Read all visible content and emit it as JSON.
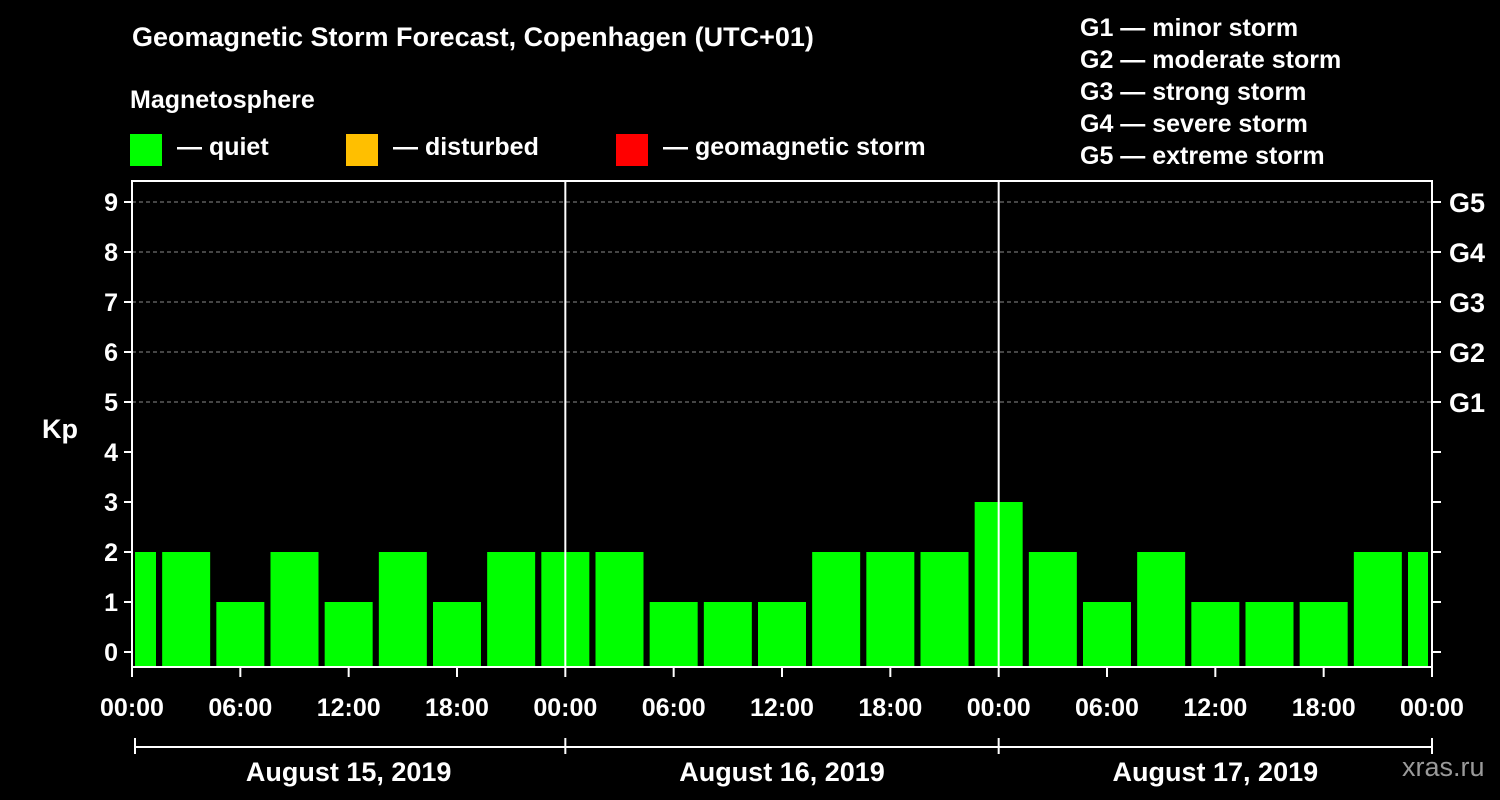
{
  "title": "Geomagnetic Storm Forecast, Copenhagen (UTC+01)",
  "legend": {
    "heading": "Magnetosphere",
    "items": [
      {
        "label": "— quiet",
        "color": "#00ff00"
      },
      {
        "label": "— disturbed",
        "color": "#ffbf00"
      },
      {
        "label": "— geomagnetic storm",
        "color": "#ff0000"
      }
    ]
  },
  "storm_scale": [
    "G1 — minor storm",
    "G2 — moderate storm",
    "G3 — strong storm",
    "G4 — severe storm",
    "G5 — extreme storm"
  ],
  "watermark": "xras.ru",
  "chart_data": {
    "type": "bar",
    "ylabel": "Kp",
    "ylim": [
      0,
      9
    ],
    "y_ticks": [
      "0",
      "1",
      "2",
      "3",
      "4",
      "5",
      "6",
      "7",
      "8",
      "9"
    ],
    "right_ticks": [
      {
        "kp": 5,
        "label": "G1"
      },
      {
        "kp": 6,
        "label": "G2"
      },
      {
        "kp": 7,
        "label": "G3"
      },
      {
        "kp": 8,
        "label": "G4"
      },
      {
        "kp": 9,
        "label": "G5"
      }
    ],
    "grid": "dashed horizontal lines at Kp 5–9",
    "x_time_labels": [
      "00:00",
      "06:00",
      "12:00",
      "18:00",
      "00:00",
      "06:00",
      "12:00",
      "18:00",
      "00:00",
      "06:00",
      "12:00",
      "18:00",
      "00:00"
    ],
    "days": [
      "August 15, 2019",
      "August 16, 2019",
      "August 17, 2019"
    ],
    "bar_interval_hours": 3,
    "bar_color": "#00ff00",
    "values": [
      2,
      2,
      1,
      2,
      1,
      2,
      1,
      2,
      2,
      2,
      1,
      1,
      1,
      2,
      2,
      2,
      3,
      2,
      1,
      2,
      1,
      1,
      1,
      2,
      2
    ]
  }
}
